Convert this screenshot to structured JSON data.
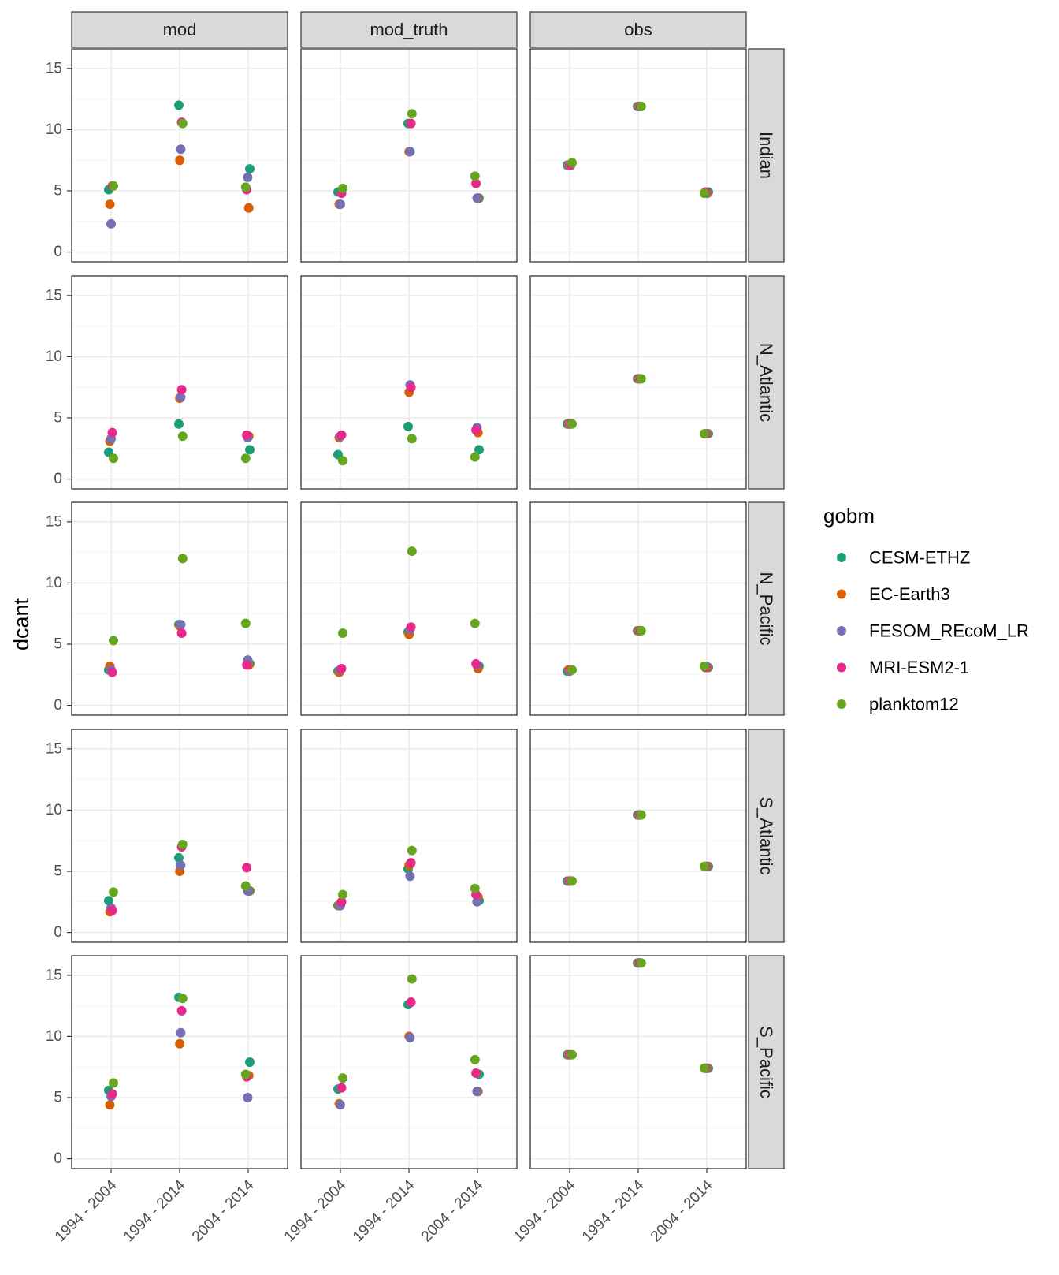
{
  "chart_data": {
    "type": "scatter",
    "facet_columns": [
      "mod",
      "mod_truth",
      "obs"
    ],
    "facet_rows": [
      "Indian",
      "N_Atlantic",
      "N_Pacific",
      "S_Atlantic",
      "S_Pacific"
    ],
    "categories": [
      "1994 - 2004",
      "1994 - 2014",
      "2004 - 2014"
    ],
    "ylabel": "dcant",
    "xlabel": "",
    "ylim": [
      -0.8,
      16.6
    ],
    "yticks": [
      0,
      5,
      10,
      15
    ],
    "grid": true,
    "legend": {
      "title": "gobm",
      "position": "right",
      "entries": [
        "CESM-ETHZ",
        "EC-Earth3",
        "FESOM_REcoM_LR",
        "MRI-ESM2-1",
        "planktom12"
      ]
    },
    "colors": {
      "CESM-ETHZ": "#1b9e77",
      "EC-Earth3": "#d95f02",
      "FESOM_REcoM_LR": "#7570b3",
      "MRI-ESM2-1": "#e7298a",
      "planktom12": "#66a61e",
      "strip_fill": "#d9d9d9",
      "grid_major": "#ebebeb",
      "grid_minor": "#f5f5f5",
      "panel_border": "#333333"
    },
    "series": [
      {
        "name": "CESM-ETHZ",
        "panels": {
          "Indian": {
            "mod": [
              5.1,
              12.0,
              6.8
            ],
            "mod_truth": [
              4.9,
              10.5,
              4.4
            ],
            "obs": [
              7.1,
              11.9,
              4.9
            ]
          },
          "N_Atlantic": {
            "mod": [
              2.2,
              4.5,
              2.4
            ],
            "mod_truth": [
              2.0,
              4.3,
              2.4
            ],
            "obs": [
              4.5,
              8.2,
              3.7
            ]
          },
          "N_Pacific": {
            "mod": [
              2.9,
              6.6,
              3.4
            ],
            "mod_truth": [
              2.8,
              6.0,
              3.2
            ],
            "obs": [
              2.8,
              6.1,
              3.1
            ]
          },
          "S_Atlantic": {
            "mod": [
              2.6,
              6.1,
              3.4
            ],
            "mod_truth": [
              2.2,
              5.2,
              2.6
            ],
            "obs": [
              4.2,
              9.6,
              5.4
            ]
          },
          "S_Pacific": {
            "mod": [
              5.6,
              13.2,
              7.9
            ],
            "mod_truth": [
              5.7,
              12.6,
              6.9
            ],
            "obs": [
              8.5,
              16.0,
              7.4
            ]
          }
        }
      },
      {
        "name": "EC-Earth3",
        "panels": {
          "Indian": {
            "mod": [
              3.9,
              7.5,
              3.6
            ],
            "mod_truth": [
              3.9,
              8.2,
              4.4
            ],
            "obs": [
              7.1,
              11.9,
              4.8
            ]
          },
          "N_Atlantic": {
            "mod": [
              3.1,
              6.6,
              3.5
            ],
            "mod_truth": [
              3.4,
              7.1,
              3.8
            ],
            "obs": [
              4.5,
              8.2,
              3.7
            ]
          },
          "N_Pacific": {
            "mod": [
              3.2,
              6.5,
              3.3
            ],
            "mod_truth": [
              2.7,
              5.8,
              3.0
            ],
            "obs": [
              2.9,
              6.1,
              3.1
            ]
          },
          "S_Atlantic": {
            "mod": [
              1.7,
              5.0,
              3.4
            ],
            "mod_truth": [
              2.2,
              5.5,
              2.9
            ],
            "obs": [
              4.2,
              9.6,
              5.4
            ]
          },
          "S_Pacific": {
            "mod": [
              4.4,
              9.4,
              6.8
            ],
            "mod_truth": [
              4.5,
              10.0,
              5.5
            ],
            "obs": [
              8.5,
              16.0,
              7.4
            ]
          }
        }
      },
      {
        "name": "FESOM_REcoM_LR",
        "panels": {
          "Indian": {
            "mod": [
              2.3,
              8.4,
              6.1
            ],
            "mod_truth": [
              3.9,
              8.2,
              4.4
            ],
            "obs": [
              7.1,
              11.9,
              4.8
            ]
          },
          "N_Atlantic": {
            "mod": [
              3.3,
              6.7,
              3.4
            ],
            "mod_truth": [
              3.5,
              7.7,
              4.2
            ],
            "obs": [
              4.5,
              8.2,
              3.7
            ]
          },
          "N_Pacific": {
            "mod": [
              2.9,
              6.6,
              3.7
            ],
            "mod_truth": [
              2.9,
              6.2,
              3.3
            ],
            "obs": [
              2.8,
              6.1,
              3.2
            ]
          },
          "S_Atlantic": {
            "mod": [
              2.0,
              5.5,
              3.4
            ],
            "mod_truth": [
              2.2,
              4.6,
              2.5
            ],
            "obs": [
              4.2,
              9.6,
              5.4
            ]
          },
          "S_Pacific": {
            "mod": [
              5.1,
              10.3,
              5.0
            ],
            "mod_truth": [
              4.4,
              9.9,
              5.5
            ],
            "obs": [
              8.5,
              16.0,
              7.4
            ]
          }
        }
      },
      {
        "name": "MRI-ESM2-1",
        "panels": {
          "Indian": {
            "mod": [
              5.4,
              10.6,
              5.1
            ],
            "mod_truth": [
              4.8,
              10.5,
              5.6
            ],
            "obs": [
              7.1,
              11.9,
              4.9
            ]
          },
          "N_Atlantic": {
            "mod": [
              3.8,
              7.3,
              3.6
            ],
            "mod_truth": [
              3.6,
              7.5,
              4.0
            ],
            "obs": [
              4.5,
              8.2,
              3.7
            ]
          },
          "N_Pacific": {
            "mod": [
              2.7,
              5.9,
              3.3
            ],
            "mod_truth": [
              3.0,
              6.4,
              3.4
            ],
            "obs": [
              2.9,
              6.1,
              3.1
            ]
          },
          "S_Atlantic": {
            "mod": [
              1.8,
              7.0,
              5.3
            ],
            "mod_truth": [
              2.5,
              5.7,
              3.1
            ],
            "obs": [
              4.2,
              9.6,
              5.4
            ]
          },
          "S_Pacific": {
            "mod": [
              5.3,
              12.1,
              6.7
            ],
            "mod_truth": [
              5.8,
              12.8,
              7.0
            ],
            "obs": [
              8.5,
              16.0,
              7.4
            ]
          }
        }
      },
      {
        "name": "planktom12",
        "panels": {
          "Indian": {
            "mod": [
              5.4,
              10.5,
              5.3
            ],
            "mod_truth": [
              5.2,
              11.3,
              6.2
            ],
            "obs": [
              7.3,
              11.9,
              4.8
            ]
          },
          "N_Atlantic": {
            "mod": [
              1.7,
              3.5,
              1.7
            ],
            "mod_truth": [
              1.5,
              3.3,
              1.8
            ],
            "obs": [
              4.5,
              8.2,
              3.7
            ]
          },
          "N_Pacific": {
            "mod": [
              5.3,
              12.0,
              6.7
            ],
            "mod_truth": [
              5.9,
              12.6,
              6.7
            ],
            "obs": [
              2.9,
              6.1,
              3.2
            ]
          },
          "S_Atlantic": {
            "mod": [
              3.3,
              7.2,
              3.8
            ],
            "mod_truth": [
              3.1,
              6.7,
              3.6
            ],
            "obs": [
              4.2,
              9.6,
              5.4
            ]
          },
          "S_Pacific": {
            "mod": [
              6.2,
              13.1,
              6.9
            ],
            "mod_truth": [
              6.6,
              14.7,
              8.1
            ],
            "obs": [
              8.5,
              16.0,
              7.4
            ]
          }
        }
      }
    ]
  }
}
